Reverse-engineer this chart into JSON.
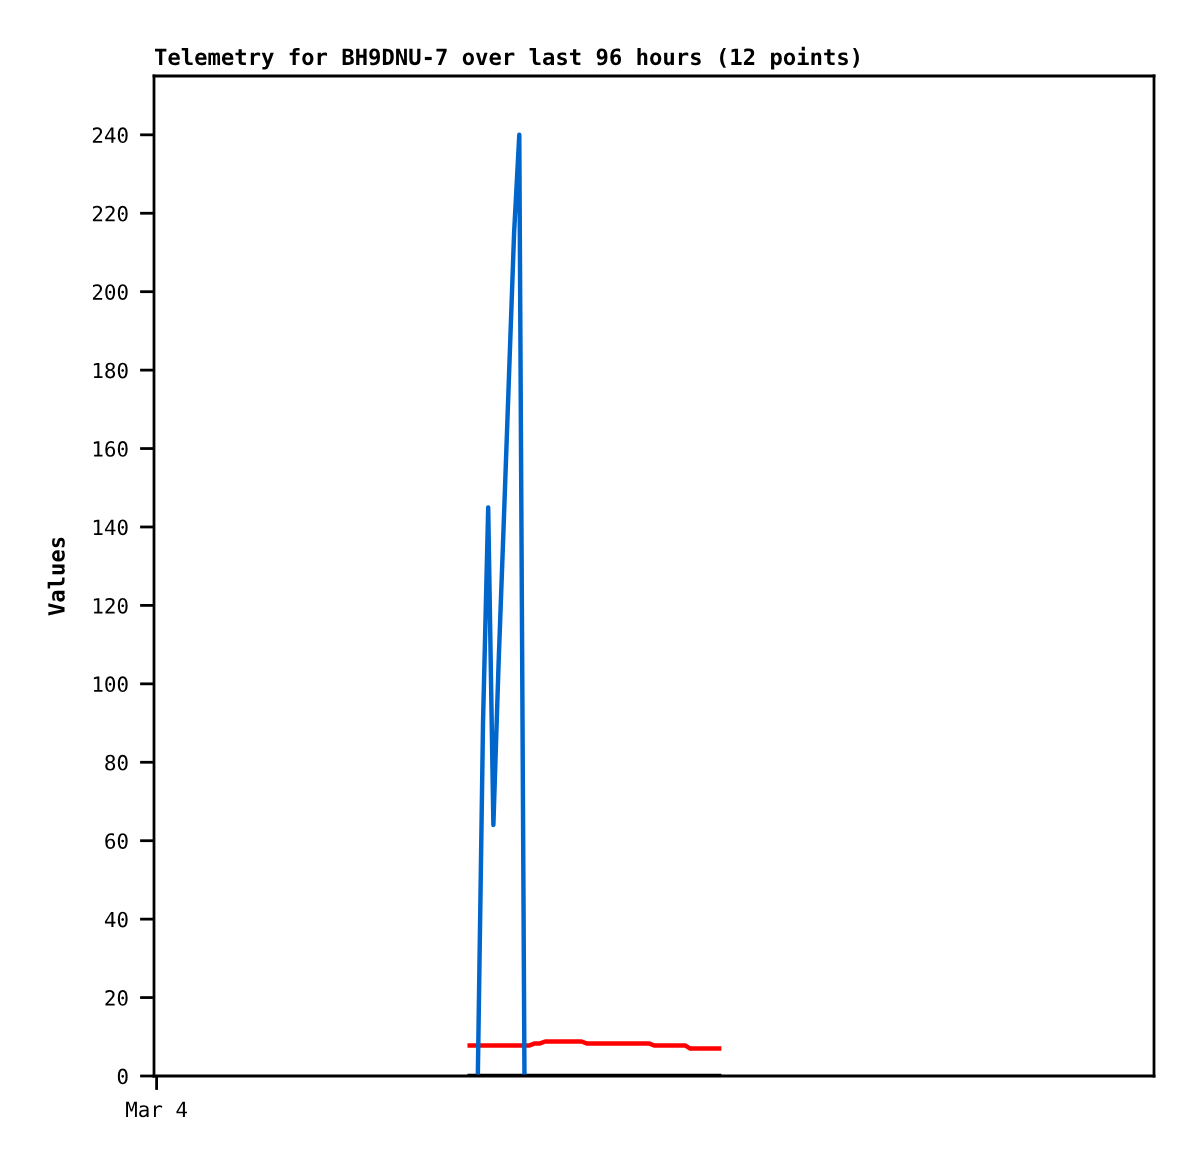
{
  "chart_data": {
    "type": "line",
    "title": "Telemetry for BH9DNU-7 over last 96 hours (12 points)",
    "ylabel": "Values",
    "ylim": [
      0,
      255
    ],
    "yticks": [
      0,
      20,
      40,
      60,
      80,
      100,
      120,
      140,
      160,
      180,
      200,
      220,
      240
    ],
    "marker": "none",
    "line_style": "solid",
    "categories": [
      "Mar 4",
      null,
      null,
      null,
      null,
      null,
      null,
      null,
      null,
      null,
      null,
      null,
      null,
      null,
      null,
      null,
      null,
      null,
      null,
      null,
      null,
      null,
      null,
      null,
      null,
      null,
      null,
      null,
      null,
      null,
      null,
      null,
      null,
      null,
      null,
      null,
      null,
      null,
      null,
      null,
      null,
      null,
      null,
      null,
      null,
      null,
      null,
      null,
      null,
      null,
      null,
      null,
      null,
      null,
      null,
      null,
      null,
      null,
      null,
      null,
      null,
      null,
      null,
      null,
      null,
      null,
      null,
      null,
      null,
      null,
      null,
      null,
      null,
      null,
      null,
      null,
      null,
      null,
      null,
      null,
      null,
      null,
      null,
      null,
      null,
      null,
      null,
      null,
      null,
      null,
      null,
      null,
      null,
      null,
      null,
      null,
      null,
      null,
      null,
      null,
      null,
      null,
      null,
      null,
      null,
      null,
      null,
      null,
      null,
      null,
      null,
      null,
      null,
      null,
      null,
      null,
      null,
      null,
      null,
      null,
      null,
      null,
      null,
      null,
      null,
      null,
      null,
      null,
      null,
      null,
      null,
      null,
      null,
      null,
      null,
      null,
      null,
      null,
      null,
      null,
      null,
      null,
      null,
      null,
      null,
      null,
      null,
      null,
      null,
      null,
      null,
      null,
      null,
      null,
      null,
      null,
      null,
      null,
      null,
      null,
      null,
      null,
      null,
      null,
      null,
      null,
      null,
      null,
      null,
      null,
      null,
      null,
      null,
      null,
      null,
      null,
      null,
      null,
      null,
      null,
      null,
      null,
      null,
      null,
      null,
      null,
      null,
      null,
      null,
      null,
      null,
      null,
      null
    ],
    "series": [
      {
        "color": "#000000",
        "values": [
          null,
          null,
          null,
          null,
          null,
          null,
          null,
          null,
          null,
          null,
          null,
          null,
          null,
          null,
          null,
          null,
          null,
          null,
          null,
          null,
          null,
          null,
          null,
          null,
          null,
          null,
          null,
          null,
          null,
          null,
          null,
          null,
          null,
          null,
          null,
          null,
          null,
          null,
          null,
          null,
          null,
          null,
          null,
          null,
          null,
          null,
          null,
          null,
          null,
          null,
          null,
          null,
          null,
          null,
          null,
          null,
          null,
          null,
          null,
          null,
          0,
          0,
          0,
          0,
          0,
          0,
          0,
          0,
          0,
          0,
          0,
          0,
          0,
          0,
          0,
          0,
          0,
          0,
          0,
          0,
          0,
          0,
          0,
          0,
          0,
          0,
          0,
          0,
          0,
          0,
          0,
          0,
          0,
          0,
          0,
          0,
          0,
          0,
          0,
          0,
          0,
          0,
          0,
          0,
          0,
          0,
          0,
          0,
          0,
          0,
          null,
          null,
          null,
          null,
          null,
          null,
          null,
          null,
          null,
          null,
          null,
          null,
          null,
          null,
          null,
          null,
          null,
          null,
          null,
          null,
          null,
          null,
          null,
          null,
          null,
          null,
          null,
          null,
          null,
          null,
          null,
          null,
          null,
          null,
          null,
          null,
          null,
          null,
          null,
          null,
          null,
          null,
          null,
          null,
          null,
          null,
          null,
          null,
          null,
          null,
          null,
          null,
          null,
          null,
          null,
          null,
          null,
          null,
          null,
          null,
          null,
          null,
          null,
          null,
          null,
          null,
          null,
          null,
          null,
          null,
          null,
          null,
          null,
          null,
          null,
          null,
          null,
          null,
          null,
          null,
          null,
          null,
          null
        ]
      },
      {
        "color": "#ff0000",
        "values": [
          null,
          null,
          null,
          null,
          null,
          null,
          null,
          null,
          null,
          null,
          null,
          null,
          null,
          null,
          null,
          null,
          null,
          null,
          null,
          null,
          null,
          null,
          null,
          null,
          null,
          null,
          null,
          null,
          null,
          null,
          null,
          null,
          null,
          null,
          null,
          null,
          null,
          null,
          null,
          null,
          null,
          null,
          null,
          null,
          null,
          null,
          null,
          null,
          null,
          null,
          null,
          null,
          null,
          null,
          null,
          null,
          null,
          null,
          null,
          null,
          7.8,
          7.8,
          7.8,
          7.8,
          7.8,
          7.8,
          7.8,
          7.8,
          7.8,
          7.8,
          7.8,
          7.8,
          7.8,
          8.3,
          8.3,
          8.8,
          8.8,
          8.8,
          8.8,
          8.8,
          8.8,
          8.8,
          8.8,
          8.3,
          8.3,
          8.3,
          8.3,
          8.3,
          8.3,
          8.3,
          8.3,
          8.3,
          8.3,
          8.3,
          8.3,
          8.3,
          7.8,
          7.8,
          7.8,
          7.8,
          7.8,
          7.8,
          7.8,
          7.0,
          7.0,
          7.0,
          7.0,
          7.0,
          7.0,
          7.0,
          null,
          null,
          null,
          null,
          null,
          null,
          null,
          null,
          null,
          null,
          null,
          null,
          null,
          null,
          null,
          null,
          null,
          null,
          null,
          null,
          null,
          null,
          null,
          null,
          null,
          null,
          null,
          null,
          null,
          null,
          null,
          null,
          null,
          null,
          null,
          null,
          null,
          null,
          null,
          null,
          null,
          null,
          null,
          null,
          null,
          null,
          null,
          null,
          null,
          null,
          null,
          null,
          null,
          null,
          null,
          null,
          null,
          null,
          null,
          null,
          null,
          null,
          null,
          null,
          null,
          null,
          null,
          null,
          null,
          null,
          null,
          null,
          null,
          null,
          null,
          null,
          null,
          null,
          null,
          null,
          null,
          null,
          null
        ]
      },
      {
        "color": "#0066cc",
        "values": [
          null,
          null,
          null,
          null,
          null,
          null,
          null,
          null,
          null,
          null,
          null,
          null,
          null,
          null,
          null,
          null,
          null,
          null,
          null,
          null,
          null,
          null,
          null,
          null,
          null,
          null,
          null,
          null,
          null,
          null,
          null,
          null,
          null,
          null,
          null,
          null,
          null,
          null,
          null,
          null,
          null,
          null,
          null,
          null,
          null,
          null,
          null,
          null,
          null,
          null,
          null,
          null,
          null,
          null,
          null,
          null,
          null,
          null,
          null,
          null,
          null,
          null,
          0,
          90,
          145,
          64,
          105,
          141,
          178,
          215,
          240,
          0,
          null,
          null,
          null,
          null,
          null,
          null,
          null,
          null,
          null,
          null,
          null,
          null,
          null,
          null,
          null,
          null,
          null,
          null,
          null,
          null,
          null,
          null,
          null,
          null,
          null,
          null,
          null,
          null,
          null,
          null,
          null,
          null,
          null,
          null,
          null,
          null,
          null,
          null,
          null,
          null,
          null,
          null,
          null,
          null,
          null,
          null,
          null,
          null,
          null,
          null,
          null,
          null,
          null,
          null,
          null,
          null,
          null,
          null,
          null,
          null,
          null,
          null,
          null,
          null,
          null,
          null,
          null,
          null,
          null,
          null,
          null,
          null,
          null,
          null,
          null,
          null,
          null,
          null,
          null,
          null,
          null,
          null,
          null,
          null,
          null,
          null,
          null,
          null,
          null,
          null,
          null,
          null,
          null,
          null,
          null,
          null,
          null,
          null,
          null,
          null,
          null,
          null,
          null,
          null,
          null,
          null,
          null,
          null,
          null,
          null,
          null,
          null,
          null,
          null,
          null,
          null,
          null,
          null,
          null,
          null,
          null
        ]
      }
    ]
  }
}
